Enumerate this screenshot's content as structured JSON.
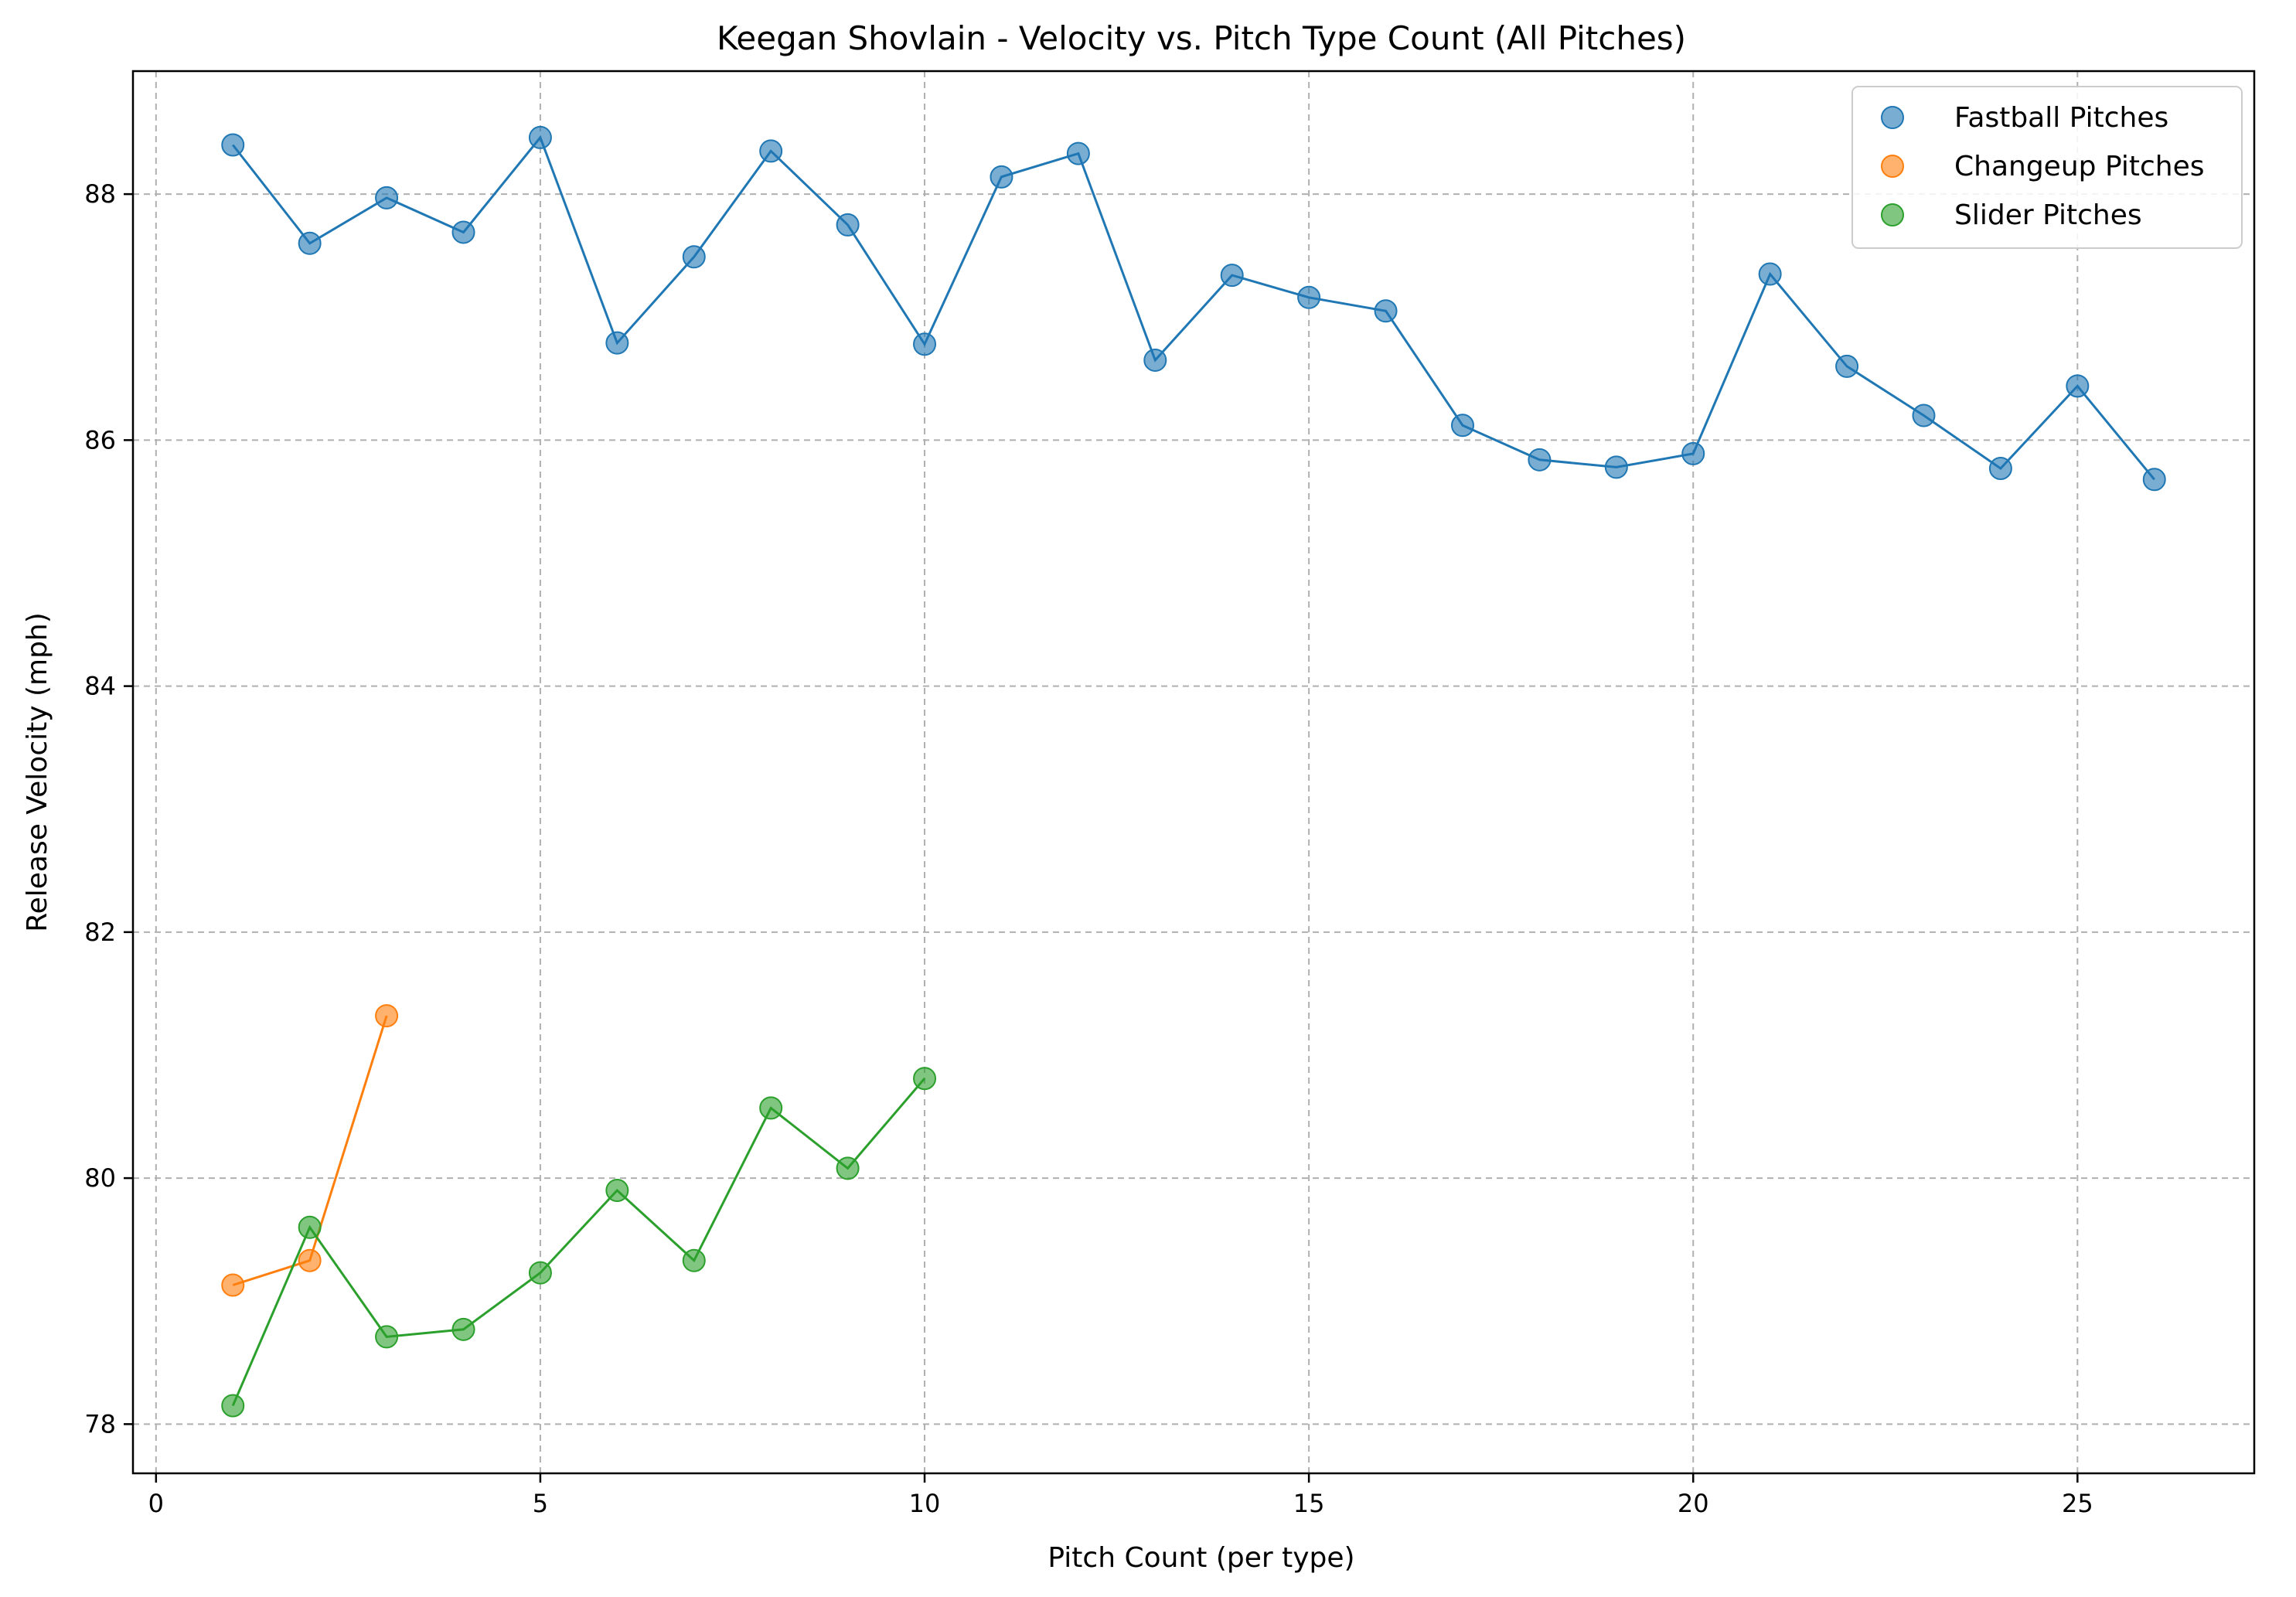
{
  "chart_data": {
    "type": "scatter",
    "title": "Keegan Shovlain - Velocity vs. Pitch Type Count (All Pitches)",
    "xlabel": "Pitch Count (per type)",
    "ylabel": "Release Velocity (mph)",
    "xlim": [
      -0.3,
      27.3
    ],
    "ylim": [
      77.6,
      89.0
    ],
    "xticks": [
      0,
      5,
      10,
      15,
      20,
      25
    ],
    "yticks": [
      78,
      80,
      82,
      84,
      86,
      88
    ],
    "grid": true,
    "legend_position": "top-right",
    "series": [
      {
        "name": "Fastball Pitches",
        "color": "#1f77b4",
        "x": [
          1,
          2,
          3,
          4,
          5,
          6,
          7,
          8,
          9,
          10,
          11,
          12,
          13,
          14,
          15,
          16,
          17,
          18,
          19,
          20,
          21,
          22,
          23,
          24,
          25,
          26
        ],
        "y": [
          88.4,
          87.6,
          87.97,
          87.69,
          88.46,
          86.79,
          87.49,
          88.35,
          87.75,
          86.78,
          88.14,
          88.33,
          86.65,
          87.34,
          87.16,
          87.05,
          86.12,
          85.84,
          85.78,
          85.89,
          87.35,
          86.6,
          86.2,
          85.77,
          86.44,
          85.68
        ]
      },
      {
        "name": "Changeup Pitches",
        "color": "#ff7f0e",
        "x": [
          1,
          2,
          3
        ],
        "y": [
          79.13,
          79.33,
          81.32
        ]
      },
      {
        "name": "Slider Pitches",
        "color": "#2ca02c",
        "x": [
          1,
          2,
          3,
          4,
          5,
          6,
          7,
          8,
          9,
          10
        ],
        "y": [
          78.15,
          79.6,
          78.71,
          78.77,
          79.23,
          79.9,
          79.33,
          80.57,
          80.08,
          80.81
        ]
      }
    ]
  }
}
